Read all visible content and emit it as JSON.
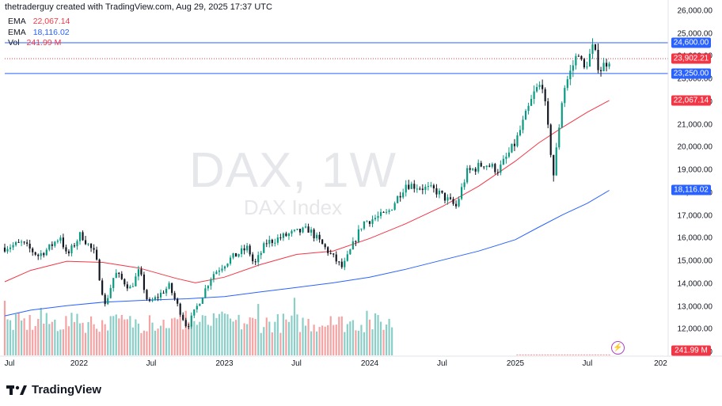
{
  "header": {
    "credit": "thetraderguy created with TradingView.com, Aug 29, 2025 17:37 UTC"
  },
  "legend": [
    {
      "label": "EMA",
      "value": "22,067.14",
      "color": "#f23645"
    },
    {
      "label": "EMA",
      "value": "18,116.02",
      "color": "#2962ff"
    },
    {
      "label": "Vol",
      "value": "241.99 M",
      "color": "#f23645"
    }
  ],
  "watermark": {
    "symbol": "DAX, 1W",
    "name": "DAX Index"
  },
  "brand": {
    "name": "TradingView"
  },
  "icons": {
    "logo": "tradingview-logo-icon",
    "flash": "lightning-icon"
  },
  "colors": {
    "up": "#089981",
    "down": "#131722",
    "ema_fast": "#f23645",
    "ema_slow": "#2962ff",
    "level": "#2962ff",
    "vol_up": "#89cfc7",
    "vol_down": "#f5a2a3"
  },
  "chart_data": {
    "type": "candlestick",
    "timeframe": "1W",
    "y_axis": {
      "ylim": [
        10900,
        26200
      ],
      "ticks": [
        11000,
        12000,
        13000,
        14000,
        15000,
        16000,
        17000,
        18000,
        19000,
        20000,
        21000,
        22000,
        23000,
        24000,
        25000,
        26000
      ],
      "tick_labels": [
        "11,000.00",
        "12,000.00",
        "13,000.00",
        "14,000.00",
        "15,000.00",
        "16,000.00",
        "17,000.00",
        "18,000.00",
        "19,000.00",
        "20,000.00",
        "21,000.00",
        "22,000.00",
        "23,000.00",
        "24,000.00",
        "25,000.00",
        "26,000.00"
      ]
    },
    "x_axis": {
      "labels": [
        "Jul",
        "2022",
        "Jul",
        "2023",
        "Jul",
        "2024",
        "Jul",
        "2025",
        "Jul",
        "202"
      ],
      "dates": [
        "2021-07-01",
        "2022-01-01",
        "2022-07-01",
        "2023-01-01",
        "2023-07-01",
        "2024-01-01",
        "2024-07-01",
        "2025-01-01",
        "2025-07-01",
        "2026-01-01"
      ],
      "start": "2021-06-28",
      "end": "2026-01-20"
    },
    "horizontal_levels": [
      {
        "value": 24600,
        "label": "24,600.00",
        "style": "solid",
        "color": "#2962ff"
      },
      {
        "value": 23250,
        "label": "23,250.00",
        "style": "solid",
        "color": "#2962ff"
      },
      {
        "value": 23902.21,
        "label": "23,902.21",
        "style": "dotted",
        "color": "#f23645"
      }
    ],
    "price_tags": [
      {
        "value": 22067.14,
        "label": "22,067.14",
        "color": "#f23645"
      },
      {
        "value": 18116.02,
        "label": "18,116.02",
        "color": "#2962ff"
      }
    ],
    "volume_tag": {
      "label": "241.99 M",
      "color": "#f23645"
    },
    "ema_fast": [
      [
        "2021-06-28",
        14100
      ],
      [
        "2021-09-01",
        14600
      ],
      [
        "2021-12-01",
        15000
      ],
      [
        "2022-03-01",
        14950
      ],
      [
        "2022-06-01",
        14700
      ],
      [
        "2022-09-01",
        14250
      ],
      [
        "2022-10-20",
        14050
      ],
      [
        "2023-01-01",
        14300
      ],
      [
        "2023-04-01",
        14850
      ],
      [
        "2023-07-01",
        15300
      ],
      [
        "2023-10-01",
        15450
      ],
      [
        "2024-01-01",
        16000
      ],
      [
        "2024-04-01",
        16650
      ],
      [
        "2024-07-01",
        17400
      ],
      [
        "2024-10-01",
        18300
      ],
      [
        "2025-01-01",
        19400
      ],
      [
        "2025-03-01",
        20200
      ],
      [
        "2025-05-01",
        20900
      ],
      [
        "2025-07-01",
        21550
      ],
      [
        "2025-08-25",
        22067.14
      ]
    ],
    "ema_slow": [
      [
        "2021-06-28",
        12600
      ],
      [
        "2021-09-01",
        12850
      ],
      [
        "2021-12-01",
        13050
      ],
      [
        "2022-03-01",
        13200
      ],
      [
        "2022-07-01",
        13300
      ],
      [
        "2022-10-01",
        13350
      ],
      [
        "2023-01-01",
        13450
      ],
      [
        "2023-04-01",
        13650
      ],
      [
        "2023-07-01",
        13850
      ],
      [
        "2023-10-01",
        14050
      ],
      [
        "2024-01-01",
        14300
      ],
      [
        "2024-04-01",
        14650
      ],
      [
        "2024-07-01",
        15050
      ],
      [
        "2024-10-01",
        15450
      ],
      [
        "2025-01-01",
        15950
      ],
      [
        "2025-03-01",
        16500
      ],
      [
        "2025-05-01",
        17050
      ],
      [
        "2025-07-01",
        17550
      ],
      [
        "2025-08-25",
        18116.02
      ]
    ],
    "price_path": [
      [
        "2021-06-28",
        15600
      ],
      [
        "2021-08-10",
        15800
      ],
      [
        "2021-09-20",
        15250
      ],
      [
        "2021-10-15",
        15550
      ],
      [
        "2021-11-15",
        16100
      ],
      [
        "2021-12-01",
        15200
      ],
      [
        "2022-01-05",
        16200
      ],
      [
        "2022-02-10",
        15300
      ],
      [
        "2022-03-07",
        13050
      ],
      [
        "2022-04-01",
        14500
      ],
      [
        "2022-05-10",
        13800
      ],
      [
        "2022-06-01",
        14600
      ],
      [
        "2022-06-24",
        13100
      ],
      [
        "2022-08-15",
        13900
      ],
      [
        "2022-09-29",
        12100
      ],
      [
        "2022-11-01",
        13300
      ],
      [
        "2022-12-01",
        14400
      ],
      [
        "2023-01-15",
        15100
      ],
      [
        "2023-03-01",
        15600
      ],
      [
        "2023-03-17",
        14800
      ],
      [
        "2023-04-15",
        15800
      ],
      [
        "2023-06-15",
        16200
      ],
      [
        "2023-08-01",
        16400
      ],
      [
        "2023-10-25",
        14700
      ],
      [
        "2023-12-15",
        16700
      ],
      [
        "2024-02-15",
        17100
      ],
      [
        "2024-04-01",
        18400
      ],
      [
        "2024-06-15",
        18100
      ],
      [
        "2024-08-05",
        17400
      ],
      [
        "2024-09-01",
        18900
      ],
      [
        "2024-10-15",
        19300
      ],
      [
        "2024-11-20",
        19000
      ],
      [
        "2025-01-01",
        20200
      ],
      [
        "2025-02-20",
        22500
      ],
      [
        "2025-03-10",
        22800
      ],
      [
        "2025-04-07",
        18800
      ],
      [
        "2025-05-01",
        22500
      ],
      [
        "2025-06-10",
        24300
      ],
      [
        "2025-06-20",
        23300
      ],
      [
        "2025-07-15",
        24400
      ],
      [
        "2025-08-01",
        23400
      ],
      [
        "2025-08-25",
        23902.21
      ]
    ],
    "volume": {
      "vol_ylim": [
        0,
        380
      ],
      "window_start": "2021-06-28",
      "window_end": "2024-03-01",
      "late_start": "2025-01-01",
      "late_end": "2025-08-25",
      "late_level": 5
    }
  }
}
